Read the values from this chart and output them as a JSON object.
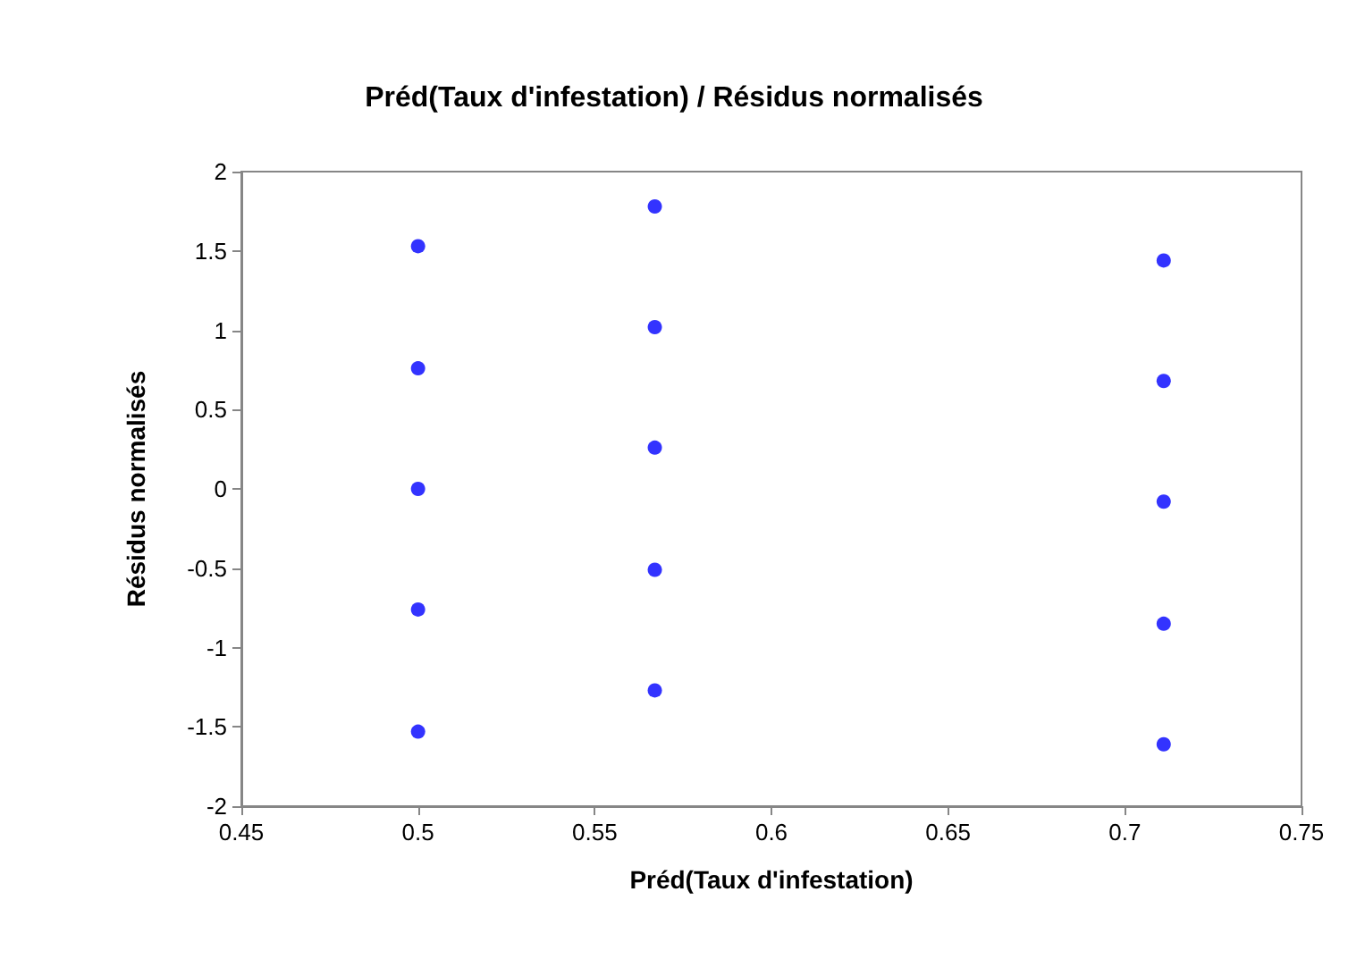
{
  "chart_data": {
    "type": "scatter",
    "title": "Préd(Taux d'infestation) / Résidus normalisés",
    "xlabel": "Préd(Taux d'infestation)",
    "ylabel": "Résidus normalisés",
    "x": [
      0.5,
      0.5,
      0.5,
      0.5,
      0.5,
      0.567,
      0.567,
      0.567,
      0.567,
      0.567,
      0.711,
      0.711,
      0.711,
      0.711,
      0.711
    ],
    "series": [
      {
        "color": "#0000ff",
        "values": [
          1.53,
          0.76,
          0,
          -0.76,
          -1.53,
          1.78,
          1.02,
          0.26,
          -0.51,
          -1.27,
          1.44,
          0.68,
          -0.08,
          -0.85,
          -1.61
        ]
      }
    ],
    "xlim": [
      0.45,
      0.75
    ],
    "xticks": [
      0.45,
      0.5,
      0.55,
      0.6,
      0.65,
      0.7,
      0.75
    ],
    "ylim": [
      -2,
      2
    ],
    "yticks": [
      -2,
      -1.5,
      -1,
      -0.5,
      0,
      0.5,
      1,
      1.5,
      2
    ],
    "grid": false,
    "marker": "circle"
  }
}
